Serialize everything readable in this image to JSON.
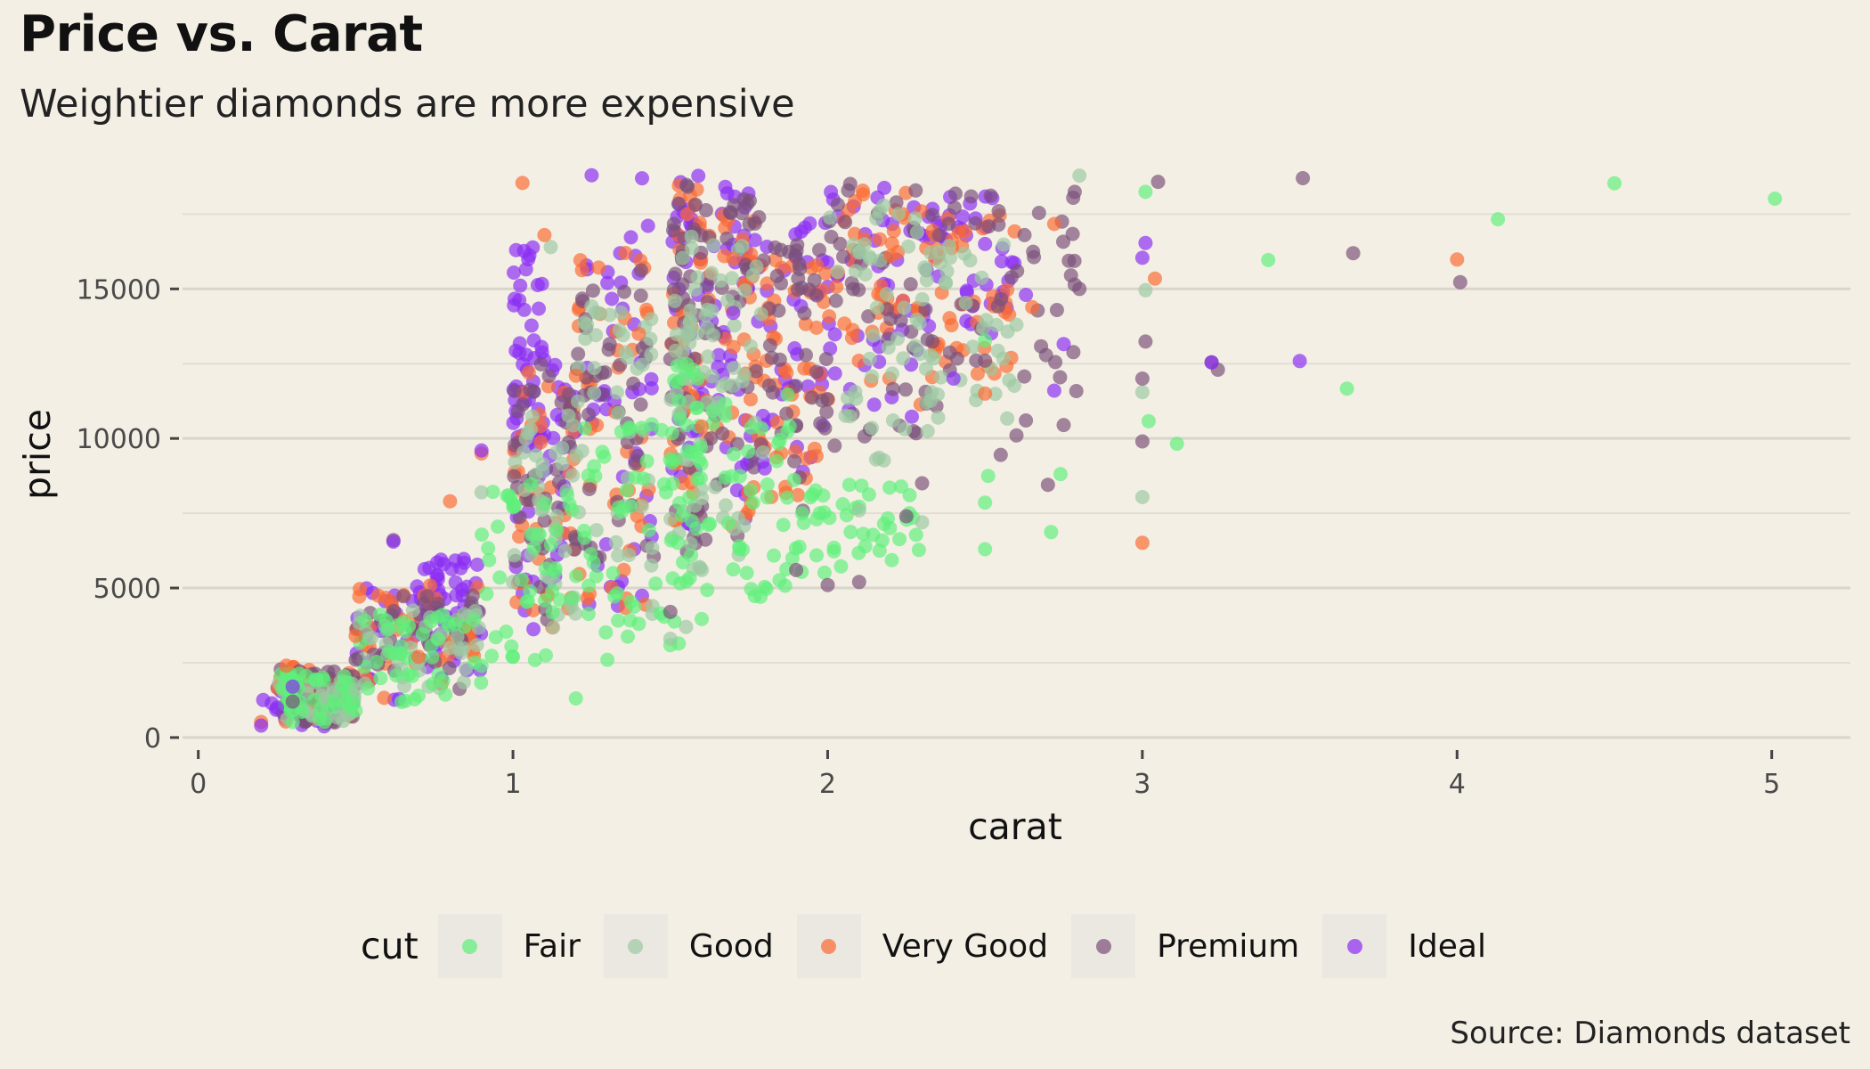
{
  "chart_data": {
    "type": "scatter",
    "title": "Price vs. Carat",
    "subtitle": "Weightier diamonds are more expensive",
    "caption": "Source: Diamonds dataset",
    "xlabel": "carat",
    "ylabel": "price",
    "xlim": [
      -0.05,
      5.25
    ],
    "ylim": [
      -300,
      19000
    ],
    "x_ticks": [
      0,
      1,
      2,
      3,
      4,
      5
    ],
    "x_tick_labels": [
      "0",
      "1",
      "2",
      "3",
      "4",
      "5"
    ],
    "y_ticks": [
      0,
      5000,
      10000,
      15000
    ],
    "y_tick_labels": [
      "0",
      "5000",
      "10000",
      "15000"
    ],
    "y_minor_ticks": [
      2500,
      7500,
      12500,
      17500
    ],
    "legend": {
      "title": "cut",
      "position": "bottom",
      "entries": [
        {
          "label": "Fair",
          "color": "#5ef07a"
        },
        {
          "label": "Good",
          "color": "#9cc9a2"
        },
        {
          "label": "Very Good",
          "color": "#fb6a32"
        },
        {
          "label": "Premium",
          "color": "#7a4f7a"
        },
        {
          "label": "Ideal",
          "color": "#8b2cf5"
        }
      ]
    },
    "series": [
      {
        "name": "Fair",
        "points": [
          [
            5.01,
            18018
          ],
          [
            4.5,
            18531
          ],
          [
            4.13,
            17329
          ],
          [
            3.65,
            11668
          ],
          [
            3.4,
            15964
          ],
          [
            3.11,
            9823
          ],
          [
            3.02,
            10577
          ],
          [
            3.01,
            18242
          ],
          [
            2.74,
            8807
          ],
          [
            2.71,
            6870
          ],
          [
            2.51,
            8747
          ],
          [
            2.5,
            7854
          ],
          [
            2.5,
            6296
          ],
          [
            2.5,
            13278
          ],
          [
            2.02,
            6346
          ],
          [
            1.99,
            5510
          ],
          [
            1.8,
            5035
          ],
          [
            1.7,
            5625
          ],
          [
            1.5,
            3088
          ],
          [
            1.2,
            1308
          ],
          [
            1.0,
            2700
          ],
          [
            0.9,
            2400
          ],
          [
            0.7,
            1400
          ],
          [
            0.5,
            900
          ],
          [
            0.3,
            520
          ],
          [
            0.6,
            3600
          ],
          [
            1.3,
            2600
          ],
          [
            1.4,
            3800
          ]
        ]
      },
      {
        "name": "Good",
        "points": [
          [
            2.8,
            18788
          ],
          [
            3.0,
            11548
          ],
          [
            3.01,
            14954
          ],
          [
            3.0,
            8040
          ],
          [
            2.6,
            13799
          ],
          [
            2.3,
            7200
          ],
          [
            2.1,
            7600
          ],
          [
            1.5,
            3300
          ],
          [
            1.55,
            3700
          ],
          [
            1.12,
            16400
          ],
          [
            0.9,
            8200
          ],
          [
            1.6,
            5600
          ],
          [
            1.0,
            5200
          ],
          [
            0.8,
            3000
          ],
          [
            0.5,
            1600
          ]
        ]
      },
      {
        "name": "Very Good",
        "points": [
          [
            4.0,
            15984
          ],
          [
            3.04,
            15346
          ],
          [
            3.0,
            6512
          ],
          [
            2.72,
            17170
          ],
          [
            2.65,
            14389
          ],
          [
            2.5,
            11500
          ],
          [
            2.2,
            16100
          ],
          [
            1.03,
            18542
          ],
          [
            0.8,
            7900
          ],
          [
            0.9,
            9500
          ],
          [
            1.4,
            13500
          ],
          [
            1.7,
            16000
          ],
          [
            0.28,
            2400
          ],
          [
            0.5,
            3400
          ],
          [
            0.7,
            2700
          ],
          [
            0.2,
            520
          ],
          [
            1.2,
            12100
          ],
          [
            1.6,
            10400
          ],
          [
            1.1,
            16800
          ]
        ]
      },
      {
        "name": "Premium",
        "points": [
          [
            4.01,
            15223
          ],
          [
            3.67,
            16193
          ],
          [
            3.51,
            18701
          ],
          [
            3.24,
            12300
          ],
          [
            3.22,
            12545
          ],
          [
            3.05,
            18581
          ],
          [
            3.01,
            13240
          ],
          [
            3.0,
            12000
          ],
          [
            3.0,
            9900
          ],
          [
            2.8,
            15000
          ],
          [
            2.75,
            10450
          ],
          [
            2.7,
            8450
          ],
          [
            2.63,
            10600
          ],
          [
            2.6,
            10100
          ],
          [
            2.55,
            9450
          ],
          [
            2.3,
            8500
          ],
          [
            2.25,
            7400
          ],
          [
            2.0,
            5100
          ],
          [
            2.1,
            5200
          ],
          [
            1.5,
            4200
          ],
          [
            0.62,
            6600
          ],
          [
            0.3,
            1200
          ],
          [
            0.5,
            2600
          ],
          [
            1.9,
            5600
          ],
          [
            2.5,
            12600
          ],
          [
            2.2,
            14000
          ]
        ]
      },
      {
        "name": "Ideal",
        "points": [
          [
            3.5,
            12587
          ],
          [
            3.22,
            12545
          ],
          [
            3.01,
            16538
          ],
          [
            3.0,
            16040
          ],
          [
            2.75,
            13156
          ],
          [
            2.72,
            11600
          ],
          [
            2.63,
            14800
          ],
          [
            2.5,
            16500
          ],
          [
            2.4,
            12000
          ],
          [
            1.25,
            18800
          ],
          [
            1.3,
            15200
          ],
          [
            0.9,
            9600
          ],
          [
            0.62,
            6550
          ],
          [
            0.3,
            1700
          ],
          [
            0.25,
            1000
          ],
          [
            0.2,
            400
          ],
          [
            1.01,
            16300
          ],
          [
            1.41,
            18700
          ],
          [
            1.7,
            14200
          ],
          [
            1.8,
            9000
          ]
        ]
      }
    ],
    "dense_clusters": [
      {
        "name": "Ideal",
        "bands": [
          [
            0.2,
            0.5,
            350,
            1800
          ],
          [
            0.5,
            0.9,
            1200,
            5200
          ],
          [
            0.7,
            0.9,
            2000,
            6000
          ],
          [
            1.0,
            1.2,
            3500,
            13000
          ],
          [
            1.0,
            1.1,
            9000,
            16500
          ],
          [
            1.2,
            1.45,
            4200,
            17500
          ],
          [
            1.5,
            1.6,
            6500,
            18800
          ],
          [
            1.6,
            1.75,
            7000,
            18500
          ],
          [
            2.0,
            2.3,
            10500,
            18800
          ],
          [
            2.3,
            2.6,
            13500,
            18500
          ],
          [
            1.75,
            2.0,
            8500,
            17500
          ]
        ]
      },
      {
        "name": "Very Good",
        "bands": [
          [
            0.25,
            0.5,
            400,
            2400
          ],
          [
            0.5,
            0.9,
            1300,
            5200
          ],
          [
            1.0,
            1.2,
            3500,
            12500
          ],
          [
            1.2,
            1.45,
            4200,
            16500
          ],
          [
            1.5,
            1.6,
            6500,
            18500
          ],
          [
            1.6,
            1.8,
            7000,
            18300
          ],
          [
            2.0,
            2.3,
            11000,
            18800
          ],
          [
            2.3,
            2.6,
            12000,
            17500
          ],
          [
            1.8,
            2.0,
            8000,
            16000
          ]
        ]
      },
      {
        "name": "Premium",
        "bands": [
          [
            0.25,
            0.5,
            400,
            2300
          ],
          [
            0.5,
            0.9,
            1300,
            4900
          ],
          [
            1.0,
            1.2,
            3600,
            12500
          ],
          [
            1.2,
            1.45,
            4300,
            16000
          ],
          [
            1.5,
            1.6,
            5800,
            18500
          ],
          [
            1.6,
            1.8,
            6500,
            18000
          ],
          [
            2.0,
            2.35,
            9500,
            18800
          ],
          [
            2.35,
            2.8,
            11500,
            18300
          ],
          [
            1.8,
            2.0,
            7500,
            16500
          ]
        ]
      },
      {
        "name": "Good",
        "bands": [
          [
            0.25,
            0.5,
            400,
            2000
          ],
          [
            0.5,
            0.9,
            1200,
            4300
          ],
          [
            1.0,
            1.2,
            3400,
            11000
          ],
          [
            1.2,
            1.45,
            4000,
            14500
          ],
          [
            1.5,
            1.6,
            5500,
            17000
          ],
          [
            1.6,
            1.8,
            6000,
            16500
          ],
          [
            2.0,
            2.3,
            9000,
            18000
          ],
          [
            2.3,
            2.6,
            10000,
            16500
          ]
        ]
      },
      {
        "name": "Fair",
        "bands": [
          [
            0.25,
            0.5,
            500,
            2200
          ],
          [
            0.5,
            0.9,
            1000,
            4200
          ],
          [
            0.9,
            1.2,
            2200,
            8500
          ],
          [
            1.2,
            1.5,
            2600,
            10500
          ],
          [
            1.5,
            1.6,
            3000,
            12500
          ],
          [
            1.6,
            1.9,
            4300,
            11500
          ],
          [
            1.9,
            2.3,
            5000,
            8500
          ]
        ]
      }
    ]
  }
}
